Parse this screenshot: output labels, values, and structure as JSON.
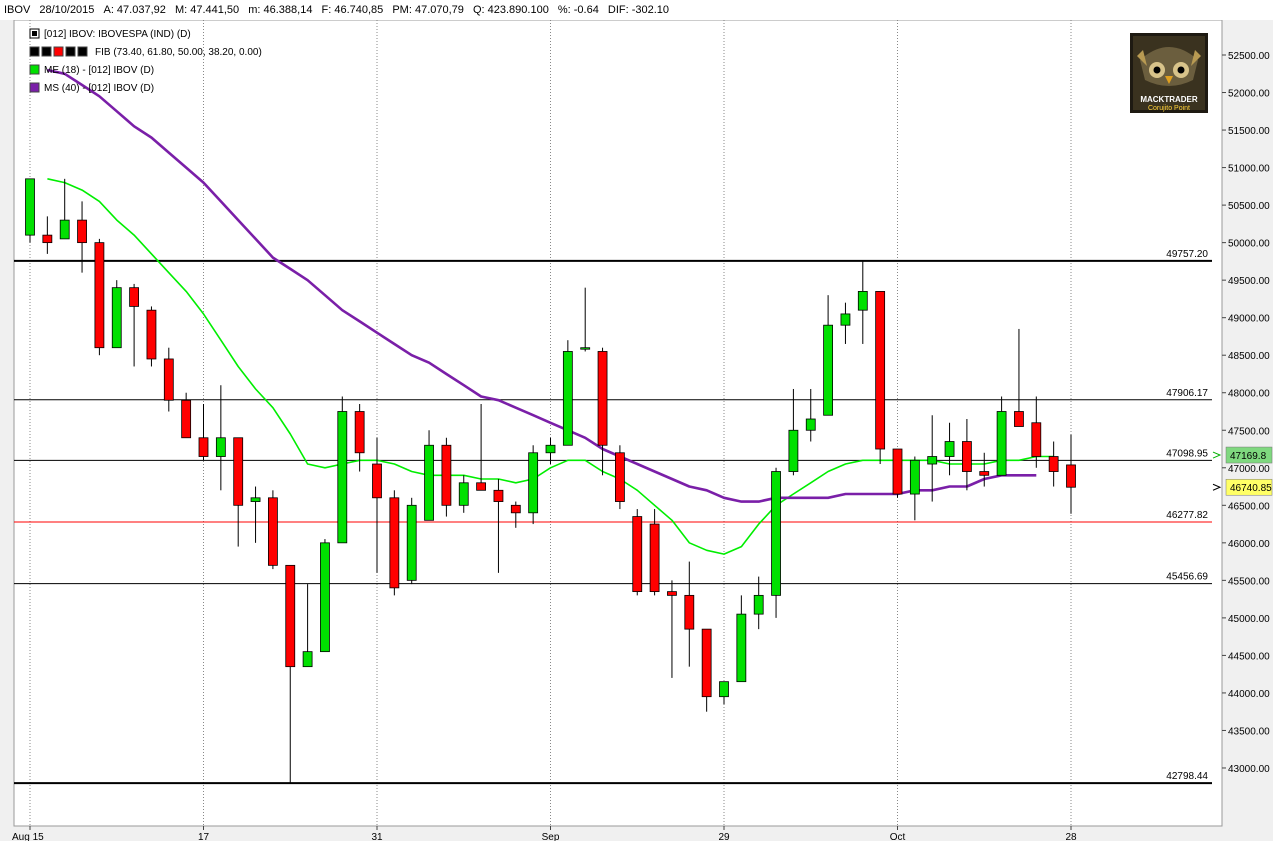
{
  "header": {
    "symbol": "IBOV",
    "date": "28/10/2015",
    "open": "A: 47.037,92",
    "high": "M: 47.441,50",
    "low": "m: 46.388,14",
    "close": "F: 46.740,85",
    "avg_price": "PM: 47.070,79",
    "quantity": "Q: 423.890.100",
    "pct_change": "%: -0.64",
    "difference": "DIF: -302.10"
  },
  "legend": [
    {
      "text": "[012] IBOV: IBOVESPA    (IND)       (D)",
      "icon": "chart-square-icon",
      "color": "#000000"
    },
    {
      "text": "FIB (73.40, 61.80, 50.00, 38.20, 0.00)",
      "icon": "fib-swatch-icon",
      "colors": [
        "#000000",
        "#000000",
        "#ff0000",
        "#000000",
        "#000000"
      ]
    },
    {
      "text": "ME (18)   - [012] IBOV (D)",
      "icon": "green-swatch-icon",
      "color": "#00e000"
    },
    {
      "text": "MS (40)   - [012] IBOV (D)",
      "icon": "purple-swatch-icon",
      "color": "#7a1fa8"
    }
  ],
  "logo": {
    "line1": "MACKTRADER",
    "line2": "Corujito Point"
  },
  "colors": {
    "up": "#00e000",
    "down": "#ff0000",
    "ema": "#00ee00",
    "sma": "#7a1fa8",
    "fib": "#000000",
    "fib_zero": "#ff0000",
    "background": "#ffffff",
    "badge_ema": "#7fd87f",
    "badge_last": "#ffff66"
  },
  "chart_data": {
    "type": "candlestick",
    "ylim": [
      42600,
      52700
    ],
    "y_ticks": [
      43000,
      43500,
      44000,
      44500,
      45000,
      45500,
      46000,
      46500,
      47000,
      47500,
      48000,
      48500,
      49000,
      49500,
      50000,
      50500,
      51000,
      51500,
      52000,
      52500
    ],
    "y_tick_labels": [
      "43000.00",
      "43500.00",
      "44000.00",
      "44500.00",
      "45000.00",
      "45500.00",
      "46000.00",
      "46500.00",
      "47000.00",
      "47500.00",
      "48000.00",
      "48500.00",
      "49000.00",
      "49500.00",
      "50000.00",
      "50500.00",
      "51000.00",
      "51500.00",
      "52000.00",
      "52500.00"
    ],
    "x_labels": [
      {
        "index": 0,
        "label": "Aug 15"
      },
      {
        "index": 10,
        "label": "17"
      },
      {
        "index": 20,
        "label": "31"
      },
      {
        "index": 30,
        "label": "Sep"
      },
      {
        "index": 40,
        "label": "29"
      },
      {
        "index": 50,
        "label": "Oct"
      },
      {
        "index": 60,
        "label": "28"
      }
    ],
    "candles": [
      {
        "o": 50100,
        "h": 50850,
        "l": 50000,
        "c": 50850
      },
      {
        "o": 50100,
        "h": 50350,
        "l": 49850,
        "c": 50000
      },
      {
        "o": 50050,
        "h": 50850,
        "l": 50050,
        "c": 50300
      },
      {
        "o": 50300,
        "h": 50550,
        "l": 49600,
        "c": 50000
      },
      {
        "o": 50000,
        "h": 50050,
        "l": 48500,
        "c": 48600
      },
      {
        "o": 48600,
        "h": 49500,
        "l": 48600,
        "c": 49400
      },
      {
        "o": 49400,
        "h": 49450,
        "l": 48350,
        "c": 49150
      },
      {
        "o": 49100,
        "h": 49150,
        "l": 48350,
        "c": 48450
      },
      {
        "o": 48450,
        "h": 48600,
        "l": 47750,
        "c": 47900
      },
      {
        "o": 47900,
        "h": 48000,
        "l": 47400,
        "c": 47400
      },
      {
        "o": 47400,
        "h": 47850,
        "l": 47100,
        "c": 47150
      },
      {
        "o": 47150,
        "h": 48100,
        "l": 46700,
        "c": 47400
      },
      {
        "o": 47400,
        "h": 47400,
        "l": 45950,
        "c": 46500
      },
      {
        "o": 46550,
        "h": 46750,
        "l": 46000,
        "c": 46600
      },
      {
        "o": 46600,
        "h": 46700,
        "l": 45650,
        "c": 45700
      },
      {
        "o": 45700,
        "h": 45700,
        "l": 42800,
        "c": 44350
      },
      {
        "o": 44350,
        "h": 45450,
        "l": 44350,
        "c": 44550
      },
      {
        "o": 44550,
        "h": 46050,
        "l": 44550,
        "c": 46000
      },
      {
        "o": 46000,
        "h": 47950,
        "l": 46000,
        "c": 47750
      },
      {
        "o": 47750,
        "h": 47850,
        "l": 46950,
        "c": 47200
      },
      {
        "o": 47050,
        "h": 47400,
        "l": 45600,
        "c": 46600
      },
      {
        "o": 46600,
        "h": 46700,
        "l": 45300,
        "c": 45400
      },
      {
        "o": 45500,
        "h": 46600,
        "l": 45450,
        "c": 46500
      },
      {
        "o": 46300,
        "h": 47500,
        "l": 46300,
        "c": 47300
      },
      {
        "o": 47300,
        "h": 47400,
        "l": 46350,
        "c": 46500
      },
      {
        "o": 46500,
        "h": 46900,
        "l": 46400,
        "c": 46800
      },
      {
        "o": 46800,
        "h": 47850,
        "l": 46700,
        "c": 46700
      },
      {
        "o": 46700,
        "h": 46850,
        "l": 45600,
        "c": 46550
      },
      {
        "o": 46500,
        "h": 46550,
        "l": 46200,
        "c": 46400
      },
      {
        "o": 46400,
        "h": 47300,
        "l": 46250,
        "c": 47200
      },
      {
        "o": 47200,
        "h": 47400,
        "l": 47050,
        "c": 47300
      },
      {
        "o": 47300,
        "h": 48700,
        "l": 47300,
        "c": 48550
      },
      {
        "o": 48600,
        "h": 49400,
        "l": 48550,
        "c": 48600
      },
      {
        "o": 48550,
        "h": 48600,
        "l": 46900,
        "c": 47300
      },
      {
        "o": 47200,
        "h": 47300,
        "l": 46450,
        "c": 46550
      },
      {
        "o": 46350,
        "h": 46450,
        "l": 45300,
        "c": 45350
      },
      {
        "o": 46250,
        "h": 46450,
        "l": 45300,
        "c": 45350
      },
      {
        "o": 45350,
        "h": 45500,
        "l": 44200,
        "c": 45300
      },
      {
        "o": 45300,
        "h": 45750,
        "l": 44350,
        "c": 44850
      },
      {
        "o": 44850,
        "h": 44850,
        "l": 43750,
        "c": 43950
      },
      {
        "o": 43950,
        "h": 44150,
        "l": 43850,
        "c": 44150
      },
      {
        "o": 44150,
        "h": 45300,
        "l": 44150,
        "c": 45050
      },
      {
        "o": 45050,
        "h": 45550,
        "l": 44850,
        "c": 45300
      },
      {
        "o": 45300,
        "h": 47000,
        "l": 45000,
        "c": 46950
      },
      {
        "o": 46950,
        "h": 48050,
        "l": 46900,
        "c": 47500
      },
      {
        "o": 47500,
        "h": 48050,
        "l": 47350,
        "c": 47650
      },
      {
        "o": 47700,
        "h": 49300,
        "l": 47700,
        "c": 48900
      },
      {
        "o": 48900,
        "h": 49200,
        "l": 48650,
        "c": 49050
      },
      {
        "o": 49100,
        "h": 49750,
        "l": 48650,
        "c": 49350
      },
      {
        "o": 49350,
        "h": 49350,
        "l": 47050,
        "c": 47250
      },
      {
        "o": 47250,
        "h": 47250,
        "l": 46600,
        "c": 46650
      },
      {
        "o": 46650,
        "h": 47150,
        "l": 46300,
        "c": 47100
      },
      {
        "o": 47050,
        "h": 47700,
        "l": 46550,
        "c": 47150
      },
      {
        "o": 47150,
        "h": 47600,
        "l": 46900,
        "c": 47350
      },
      {
        "o": 47350,
        "h": 47650,
        "l": 46700,
        "c": 46950
      },
      {
        "o": 46950,
        "h": 47200,
        "l": 46750,
        "c": 46900
      },
      {
        "o": 46900,
        "h": 47950,
        "l": 46900,
        "c": 47750
      },
      {
        "o": 47750,
        "h": 48850,
        "l": 47550,
        "c": 47550
      },
      {
        "o": 47600,
        "h": 47950,
        "l": 47000,
        "c": 47150
      },
      {
        "o": 47150,
        "h": 47350,
        "l": 46750,
        "c": 46950
      },
      {
        "o": 47038,
        "h": 47442,
        "l": 46388,
        "c": 46741
      }
    ],
    "series": [
      {
        "name": "ME (18)",
        "color": "#00ee00",
        "start_index": 1,
        "values": [
          50850,
          50800,
          50700,
          50550,
          50300,
          50100,
          49850,
          49600,
          49350,
          49050,
          48700,
          48350,
          48050,
          47800,
          47450,
          47050,
          47000,
          47050,
          47100,
          47100,
          47050,
          46950,
          46900,
          46900,
          46900,
          46850,
          46850,
          46800,
          46850,
          47000,
          47100,
          47100,
          46950,
          46850,
          46700,
          46500,
          46300,
          46000,
          45900,
          45850,
          45950,
          46250,
          46500,
          46650,
          46800,
          46950,
          47050,
          47100,
          47100,
          47100,
          47100,
          47100,
          47050,
          47050,
          47050,
          47100,
          47100,
          47150,
          47150
        ]
      },
      {
        "name": "MS (40)",
        "color": "#7a1fa8",
        "start_index": 1,
        "values": [
          52300,
          52250,
          52100,
          51950,
          51750,
          51550,
          51400,
          51200,
          51000,
          50800,
          50550,
          50300,
          50050,
          49800,
          49650,
          49500,
          49300,
          49100,
          48950,
          48800,
          48650,
          48500,
          48400,
          48250,
          48100,
          47950,
          47900,
          47800,
          47700,
          47600,
          47500,
          47400,
          47250,
          47150,
          47050,
          46950,
          46850,
          46750,
          46700,
          46600,
          46550,
          46550,
          46600,
          46600,
          46600,
          46600,
          46650,
          46650,
          46650,
          46650,
          46700,
          46700,
          46750,
          46750,
          46850,
          46900,
          46900,
          46900
        ]
      }
    ],
    "fib_levels": [
      {
        "value": 49757.2,
        "label": "49757.20",
        "color": "#000000"
      },
      {
        "value": 47906.17,
        "label": "47906.17",
        "color": "#000000"
      },
      {
        "value": 47098.95,
        "label": "47098.95",
        "color": "#000000"
      },
      {
        "value": 46277.82,
        "label": "46277.82",
        "color": "#ff0000"
      },
      {
        "value": 45456.69,
        "label": "45456.69",
        "color": "#000000"
      },
      {
        "value": 42798.44,
        "label": "42798.44",
        "color": "#000000"
      }
    ],
    "badges": [
      {
        "value": 47169.8,
        "label": "47169.8",
        "color": "#7fd87f"
      },
      {
        "value": 46740.85,
        "label": "46740.85",
        "color": "#ffff66"
      }
    ]
  }
}
